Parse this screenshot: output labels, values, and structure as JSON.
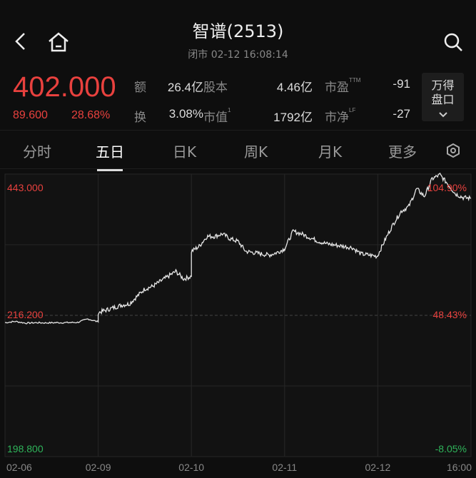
{
  "header": {
    "title": "智谱(2513)",
    "subtitle": "闭市  02-12 16:08:14",
    "icons": [
      "chevron-left-icon",
      "home-icon",
      "search-icon"
    ]
  },
  "quote": {
    "price": "402.000",
    "change": "89.600",
    "change_pct": "28.68%",
    "stats": [
      {
        "label": "额",
        "value": "26.4亿"
      },
      {
        "label": "股本",
        "value": "4.46亿"
      },
      {
        "label": "市盈",
        "sup": "TTM",
        "value": "-91"
      },
      {
        "label": "换",
        "value": "3.08%"
      },
      {
        "label": "市值",
        "sup": "1",
        "value": "1792亿"
      },
      {
        "label": "市净",
        "sup": "LF",
        "value": "-27"
      }
    ],
    "panel_label_1": "万得",
    "panel_label_2": "盘口"
  },
  "tabs": [
    {
      "label": "分时"
    },
    {
      "label": "五日",
      "active": true
    },
    {
      "label": "日K"
    },
    {
      "label": "周K"
    },
    {
      "label": "月K"
    },
    {
      "label": "更多"
    }
  ],
  "colors": {
    "up": "#e8413e",
    "down": "#2fb45a",
    "line": "#e6e6e6",
    "bg": "#121212"
  },
  "chart_data": {
    "type": "line",
    "y_left_labels": [
      "443.000",
      "216.200",
      "198.800"
    ],
    "y_right_labels": [
      "104.90%",
      "48.43%",
      "-8.05%"
    ],
    "ylim_pct": [
      -8.05,
      104.9
    ],
    "x_labels": [
      "02-06",
      "02-09",
      "02-10",
      "02-11",
      "02-12",
      "16:00"
    ],
    "grid": true,
    "days": [
      {
        "date": "02-06",
        "pct": [
          45.5,
          46,
          45.3,
          45.5,
          45.4,
          45.5,
          45.5,
          45.6,
          47,
          45.8
        ]
      },
      {
        "date": "02-09",
        "pct": [
          49.5,
          50.5,
          51.5,
          52.5,
          53,
          56,
          59,
          60,
          62,
          64,
          66,
          63,
          64
        ]
      },
      {
        "date": "02-10",
        "pct": [
          74,
          76,
          80,
          80,
          81,
          79,
          78,
          74,
          73.5,
          73,
          72.5,
          73.5,
          75
        ]
      },
      {
        "date": "02-11",
        "pct": [
          75,
          82,
          81,
          79.5,
          78,
          77,
          76.5,
          76,
          75.5,
          73,
          72.5,
          72
        ]
      },
      {
        "date": "02-12",
        "pct": [
          72.5,
          79,
          85,
          90,
          92,
          99,
          96,
          103,
          104.6,
          101,
          97,
          95.5,
          95.2
        ]
      }
    ]
  }
}
